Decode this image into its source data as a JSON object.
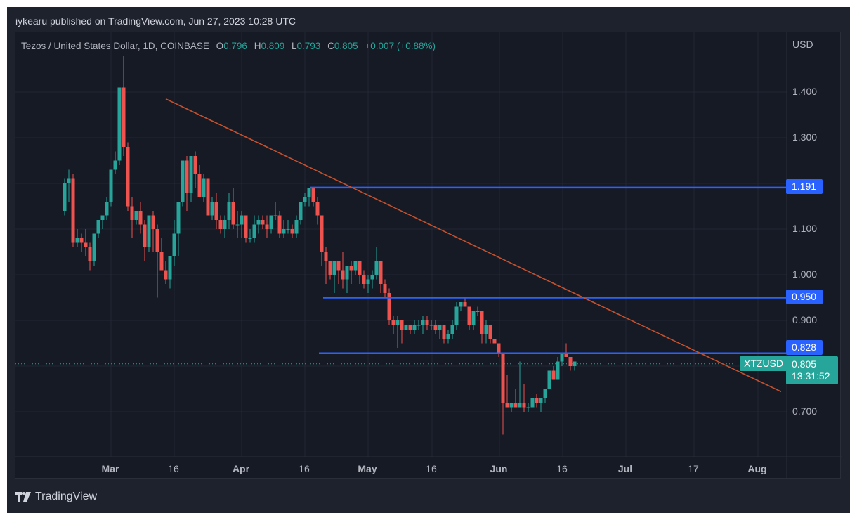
{
  "header": {
    "publisher": "iykearu published on TradingView.com, Jun 27, 2023 10:28 UTC"
  },
  "legend": {
    "symbol_desc": "Tezos / United States Dollar, 1D, COINBASE",
    "o_label": "O",
    "o": "0.796",
    "h_label": "H",
    "h": "0.809",
    "l_label": "L",
    "l": "0.793",
    "c_label": "C",
    "c": "0.805",
    "change": "+0.007 (+0.88%)"
  },
  "price_axis": {
    "currency": "USD",
    "ticks": [
      "1.400",
      "1.300",
      "1.100",
      "1.000",
      "0.900",
      "0.700"
    ],
    "tags": {
      "level1": "1.191",
      "level2": "0.950",
      "level3": "0.828",
      "current_price": "0.805",
      "countdown": "13:31:52",
      "symbol": "XTZUSD"
    }
  },
  "time_axis": {
    "labels": [
      {
        "text": "Mar",
        "bold": true
      },
      {
        "text": "16",
        "bold": false
      },
      {
        "text": "Apr",
        "bold": true
      },
      {
        "text": "16",
        "bold": false
      },
      {
        "text": "May",
        "bold": true
      },
      {
        "text": "16",
        "bold": false
      },
      {
        "text": "Jun",
        "bold": true
      },
      {
        "text": "16",
        "bold": false
      },
      {
        "text": "Jul",
        "bold": true
      },
      {
        "text": "17",
        "bold": false
      },
      {
        "text": "Aug",
        "bold": true
      }
    ]
  },
  "footer": {
    "brand": "TradingView"
  },
  "colors": {
    "up": "#26a69a",
    "down": "#ef5350",
    "level_line": "#2962ff",
    "trendline": "#c4502d",
    "background": "#161a25",
    "frame": "#1e222d"
  },
  "chart_data": {
    "type": "candlestick",
    "title": "Tezos / United States Dollar, 1D, COINBASE",
    "xlabel": "",
    "ylabel": "USD",
    "ylim": [
      0.62,
      1.5
    ],
    "grid": true,
    "start_date": "2023-02-18",
    "ohlc": [
      [
        1.14,
        1.21,
        1.13,
        1.2
      ],
      [
        1.2,
        1.23,
        1.16,
        1.21
      ],
      [
        1.21,
        1.22,
        1.06,
        1.07
      ],
      [
        1.07,
        1.1,
        1.06,
        1.08
      ],
      [
        1.08,
        1.09,
        1.05,
        1.07
      ],
      [
        1.07,
        1.1,
        1.04,
        1.06
      ],
      [
        1.06,
        1.07,
        1.01,
        1.03
      ],
      [
        1.03,
        1.09,
        1.02,
        1.09
      ],
      [
        1.09,
        1.12,
        1.08,
        1.12
      ],
      [
        1.12,
        1.13,
        1.1,
        1.13
      ],
      [
        1.13,
        1.17,
        1.12,
        1.16
      ],
      [
        1.16,
        1.22,
        1.15,
        1.23
      ],
      [
        1.23,
        1.27,
        1.22,
        1.25
      ],
      [
        1.25,
        1.41,
        1.24,
        1.41
      ],
      [
        1.41,
        1.48,
        1.26,
        1.28
      ],
      [
        1.28,
        1.29,
        1.14,
        1.15
      ],
      [
        1.15,
        1.17,
        1.08,
        1.12
      ],
      [
        1.12,
        1.14,
        1.11,
        1.14
      ],
      [
        1.14,
        1.16,
        1.09,
        1.11
      ],
      [
        1.11,
        1.12,
        1.03,
        1.06
      ],
      [
        1.06,
        1.12,
        1.05,
        1.13
      ],
      [
        1.13,
        1.14,
        1.05,
        1.1
      ],
      [
        1.1,
        1.11,
        0.95,
        1.05
      ],
      [
        1.05,
        1.08,
        1.02,
        1.01
      ],
      [
        1.01,
        1.03,
        0.98,
        0.99
      ],
      [
        0.99,
        1.04,
        0.97,
        1.04
      ],
      [
        1.04,
        1.12,
        1.02,
        1.09
      ],
      [
        1.09,
        1.16,
        1.04,
        1.16
      ],
      [
        1.16,
        1.24,
        1.15,
        1.25
      ],
      [
        1.25,
        1.26,
        1.14,
        1.18
      ],
      [
        1.18,
        1.26,
        1.16,
        1.26
      ],
      [
        1.26,
        1.27,
        1.19,
        1.22
      ],
      [
        1.22,
        1.24,
        1.17,
        1.17
      ],
      [
        1.17,
        1.22,
        1.16,
        1.21
      ],
      [
        1.21,
        1.21,
        1.13,
        1.13
      ],
      [
        1.13,
        1.17,
        1.12,
        1.16
      ],
      [
        1.16,
        1.18,
        1.1,
        1.12
      ],
      [
        1.12,
        1.13,
        1.09,
        1.1
      ],
      [
        1.1,
        1.13,
        1.08,
        1.12
      ],
      [
        1.12,
        1.18,
        1.1,
        1.16
      ],
      [
        1.16,
        1.19,
        1.1,
        1.11
      ],
      [
        1.11,
        1.14,
        1.08,
        1.11
      ],
      [
        1.11,
        1.14,
        1.08,
        1.13
      ],
      [
        1.13,
        1.13,
        1.07,
        1.08
      ],
      [
        1.08,
        1.1,
        1.07,
        1.08
      ],
      [
        1.08,
        1.13,
        1.07,
        1.11
      ],
      [
        1.11,
        1.13,
        1.09,
        1.12
      ],
      [
        1.12,
        1.13,
        1.1,
        1.11
      ],
      [
        1.11,
        1.13,
        1.08,
        1.1
      ],
      [
        1.1,
        1.13,
        1.09,
        1.13
      ],
      [
        1.13,
        1.16,
        1.12,
        1.13
      ],
      [
        1.13,
        1.14,
        1.08,
        1.09
      ],
      [
        1.09,
        1.12,
        1.08,
        1.1
      ],
      [
        1.1,
        1.12,
        1.09,
        1.1
      ],
      [
        1.1,
        1.11,
        1.08,
        1.09
      ],
      [
        1.09,
        1.13,
        1.08,
        1.12
      ],
      [
        1.12,
        1.16,
        1.11,
        1.16
      ],
      [
        1.16,
        1.18,
        1.15,
        1.17
      ],
      [
        1.17,
        1.19,
        1.15,
        1.19
      ],
      [
        1.19,
        1.19,
        1.15,
        1.16
      ],
      [
        1.16,
        1.17,
        1.11,
        1.13
      ],
      [
        1.13,
        1.13,
        1.02,
        1.05
      ],
      [
        1.05,
        1.06,
        0.98,
        1.03
      ],
      [
        1.03,
        1.03,
        0.99,
        1.0
      ],
      [
        1.0,
        1.03,
        0.96,
        1.03
      ],
      [
        1.03,
        1.03,
        0.98,
        1.01
      ],
      [
        1.01,
        1.05,
        0.97,
        0.99
      ],
      [
        0.99,
        1.02,
        0.96,
        1.02
      ],
      [
        1.02,
        1.03,
        0.98,
        1.01
      ],
      [
        1.01,
        1.03,
        1.0,
        1.03
      ],
      [
        1.03,
        1.03,
        0.98,
        1.0
      ],
      [
        1.0,
        1.01,
        0.97,
        0.98
      ],
      [
        0.98,
        1.0,
        0.96,
        0.99
      ],
      [
        0.99,
        1.01,
        0.97,
        1.0
      ],
      [
        1.0,
        1.06,
        0.99,
        1.03
      ],
      [
        1.03,
        1.03,
        0.96,
        0.98
      ],
      [
        0.98,
        0.99,
        0.95,
        0.96
      ],
      [
        0.96,
        0.97,
        0.89,
        0.9
      ],
      [
        0.9,
        0.91,
        0.87,
        0.89
      ],
      [
        0.89,
        0.91,
        0.84,
        0.9
      ],
      [
        0.9,
        0.9,
        0.85,
        0.88
      ],
      [
        0.88,
        0.89,
        0.88,
        0.89
      ],
      [
        0.89,
        0.89,
        0.87,
        0.88
      ],
      [
        0.88,
        0.9,
        0.87,
        0.89
      ],
      [
        0.89,
        0.9,
        0.88,
        0.89
      ],
      [
        0.89,
        0.91,
        0.87,
        0.9
      ],
      [
        0.9,
        0.91,
        0.88,
        0.89
      ],
      [
        0.89,
        0.9,
        0.88,
        0.89
      ],
      [
        0.89,
        0.9,
        0.87,
        0.88
      ],
      [
        0.88,
        0.89,
        0.86,
        0.89
      ],
      [
        0.89,
        0.89,
        0.85,
        0.86
      ],
      [
        0.86,
        0.88,
        0.85,
        0.87
      ],
      [
        0.87,
        0.9,
        0.86,
        0.89
      ],
      [
        0.89,
        0.94,
        0.88,
        0.93
      ],
      [
        0.93,
        0.94,
        0.92,
        0.94
      ],
      [
        0.94,
        0.95,
        0.93,
        0.93
      ],
      [
        0.93,
        0.93,
        0.88,
        0.89
      ],
      [
        0.89,
        0.92,
        0.88,
        0.92
      ],
      [
        0.92,
        0.93,
        0.91,
        0.92
      ],
      [
        0.92,
        0.92,
        0.85,
        0.87
      ],
      [
        0.87,
        0.9,
        0.85,
        0.89
      ],
      [
        0.89,
        0.89,
        0.85,
        0.86
      ],
      [
        0.86,
        0.86,
        0.85,
        0.85
      ],
      [
        0.85,
        0.85,
        0.82,
        0.83
      ],
      [
        0.83,
        0.83,
        0.65,
        0.72
      ],
      [
        0.72,
        0.78,
        0.71,
        0.71
      ],
      [
        0.71,
        0.72,
        0.7,
        0.72
      ],
      [
        0.72,
        0.75,
        0.71,
        0.71
      ],
      [
        0.71,
        0.81,
        0.71,
        0.72
      ],
      [
        0.72,
        0.76,
        0.7,
        0.71
      ],
      [
        0.71,
        0.72,
        0.7,
        0.71
      ],
      [
        0.71,
        0.73,
        0.71,
        0.73
      ],
      [
        0.73,
        0.74,
        0.71,
        0.72
      ],
      [
        0.72,
        0.73,
        0.7,
        0.73
      ],
      [
        0.73,
        0.74,
        0.72,
        0.75
      ],
      [
        0.75,
        0.78,
        0.75,
        0.79
      ],
      [
        0.79,
        0.8,
        0.78,
        0.77
      ],
      [
        0.77,
        0.82,
        0.77,
        0.81
      ],
      [
        0.81,
        0.83,
        0.8,
        0.83
      ],
      [
        0.83,
        0.85,
        0.82,
        0.82
      ],
      [
        0.82,
        0.82,
        0.79,
        0.8
      ],
      [
        0.8,
        0.81,
        0.79,
        0.81
      ]
    ],
    "levels": [
      {
        "price": 1.191,
        "from_index": 59
      },
      {
        "price": 0.95,
        "from_index": 62
      },
      {
        "price": 0.828,
        "from_index": 61
      }
    ],
    "trendline": {
      "from": {
        "index": 24,
        "price": 1.385
      },
      "to": {
        "index": 170,
        "price": 0.744
      }
    },
    "current_price": 0.805
  }
}
